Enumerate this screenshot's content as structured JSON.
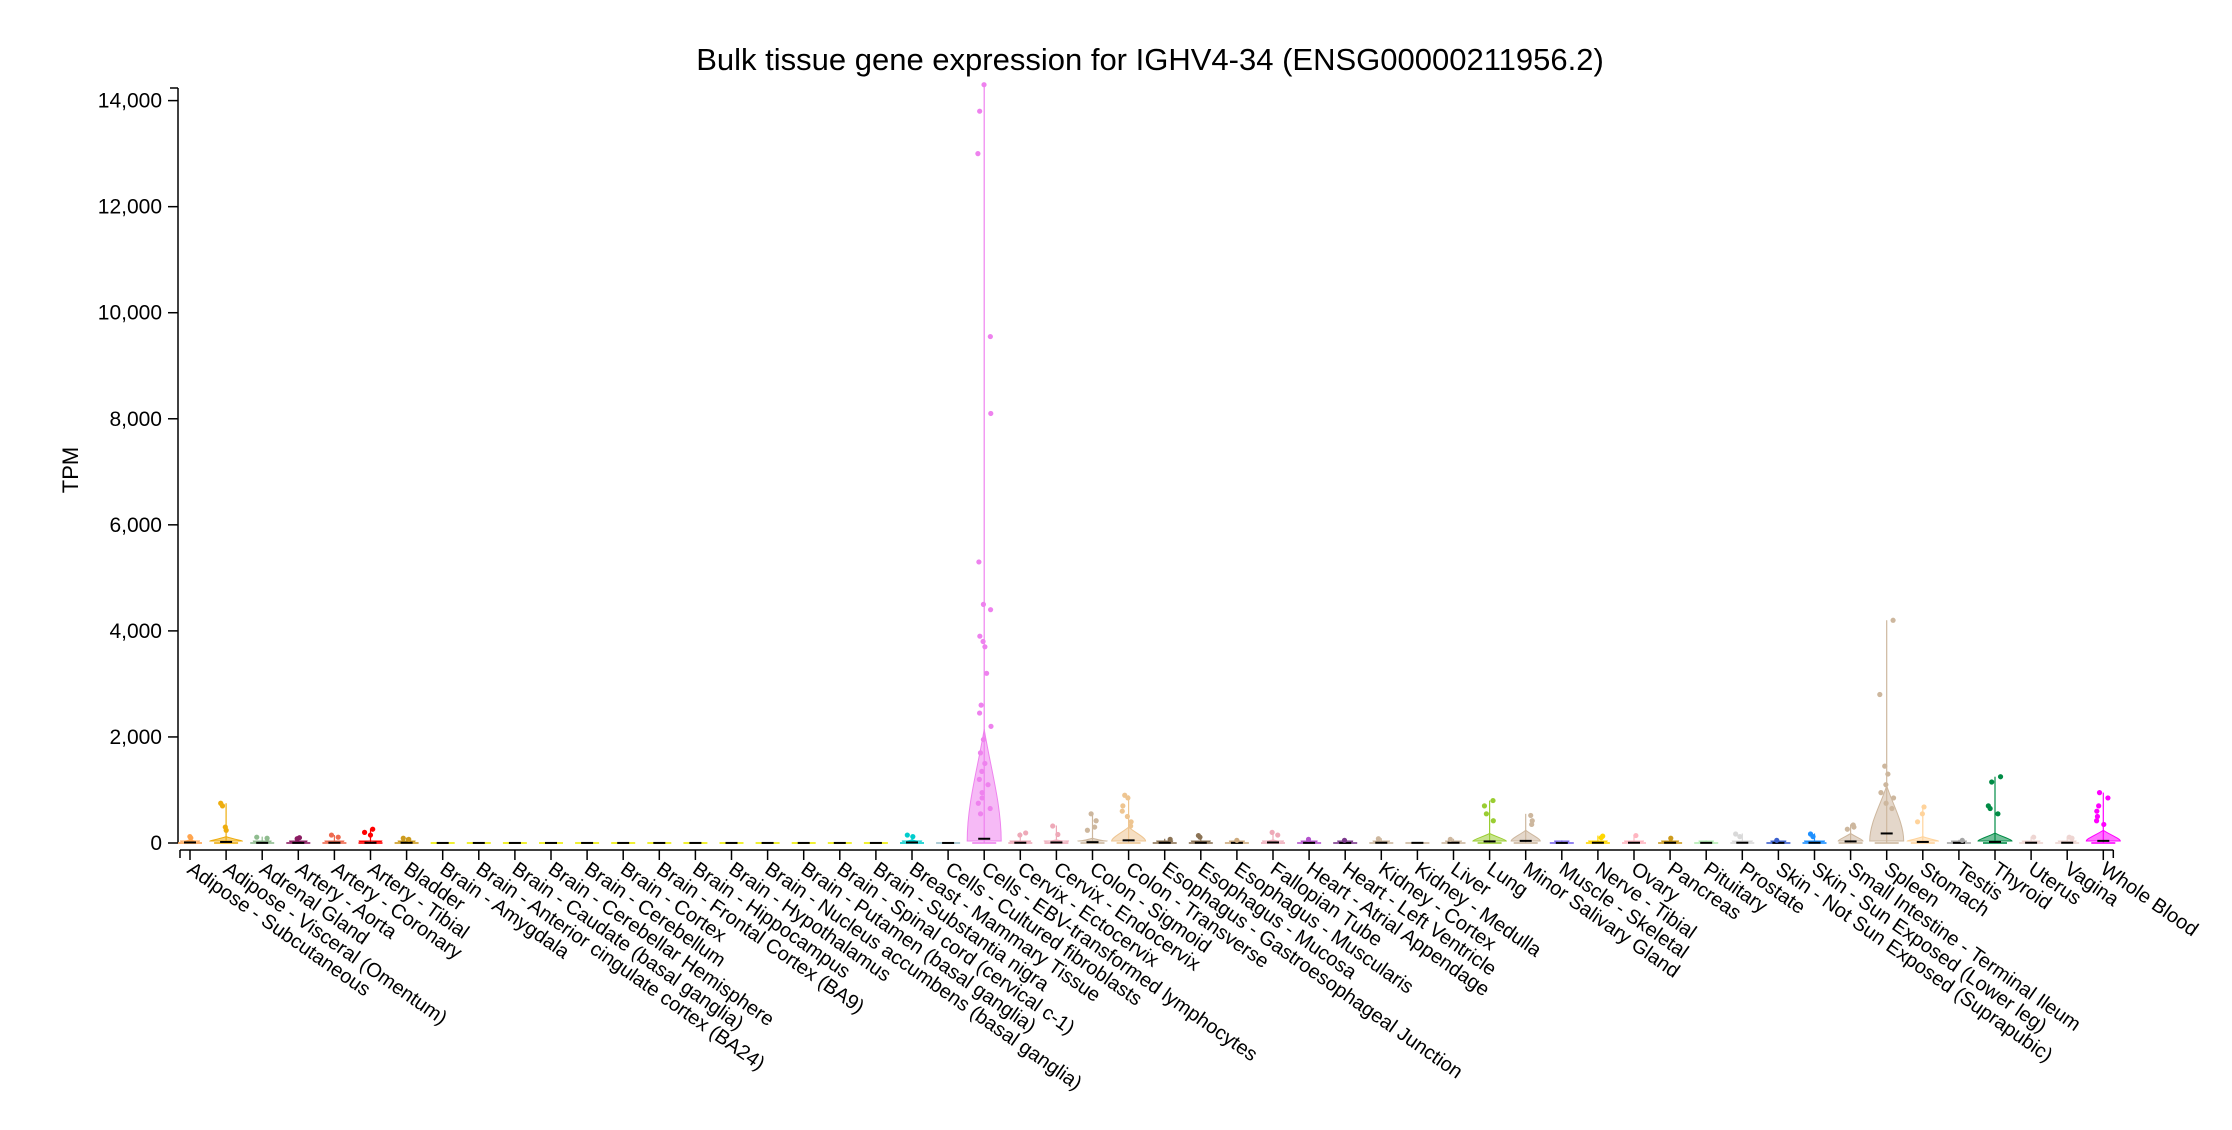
{
  "chart_data": {
    "type": "violin",
    "title": "Bulk tissue gene expression for IGHV4-34 (ENSG00000211956.2)",
    "xlabel": "",
    "ylabel": "TPM",
    "ylim": [
      0,
      14200
    ],
    "yticks": [
      0,
      2000,
      4000,
      6000,
      8000,
      10000,
      12000,
      14000
    ],
    "ytick_labels": [
      "0",
      "2,000",
      "4,000",
      "6,000",
      "8,000",
      "10,000",
      "12,000",
      "14,000"
    ],
    "grid": false,
    "legend": "none",
    "categories": [
      {
        "name": "Adipose - Subcutaneous",
        "color": "#FFA54F",
        "max": 150,
        "median": 10,
        "outliers": [
          120,
          95
        ]
      },
      {
        "name": "Adipose - Visceral (Omentum)",
        "color": "#EEAD0E",
        "max": 750,
        "median": 20,
        "outliers": [
          750,
          700,
          300,
          240
        ]
      },
      {
        "name": "Adrenal Gland",
        "color": "#8FBC8F",
        "max": 120,
        "median": 3,
        "outliers": [
          110,
          90
        ]
      },
      {
        "name": "Artery - Aorta",
        "color": "#8B1C62",
        "max": 110,
        "median": 3,
        "outliers": [
          100,
          80
        ]
      },
      {
        "name": "Artery - Coronary",
        "color": "#EE6A50",
        "max": 150,
        "median": 5,
        "outliers": [
          150,
          110
        ]
      },
      {
        "name": "Artery - Tibial",
        "color": "#FF0000",
        "max": 270,
        "median": 5,
        "outliers": [
          260,
          200,
          150
        ]
      },
      {
        "name": "Bladder",
        "color": "#CD9B1D",
        "max": 100,
        "median": 5,
        "outliers": [
          90,
          70
        ]
      },
      {
        "name": "Brain - Amygdala",
        "color": "#EEEE00",
        "max": 10,
        "median": 1,
        "outliers": []
      },
      {
        "name": "Brain - Anterior cingulate cortex (BA24)",
        "color": "#EEEE00",
        "max": 10,
        "median": 1,
        "outliers": []
      },
      {
        "name": "Brain - Caudate (basal ganglia)",
        "color": "#EEEE00",
        "max": 10,
        "median": 1,
        "outliers": []
      },
      {
        "name": "Brain - Cerebellar Hemisphere",
        "color": "#EEEE00",
        "max": 10,
        "median": 1,
        "outliers": []
      },
      {
        "name": "Brain - Cerebellum",
        "color": "#EEEE00",
        "max": 10,
        "median": 1,
        "outliers": []
      },
      {
        "name": "Brain - Cortex",
        "color": "#EEEE00",
        "max": 10,
        "median": 1,
        "outliers": []
      },
      {
        "name": "Brain - Frontal Cortex (BA9)",
        "color": "#EEEE00",
        "max": 10,
        "median": 1,
        "outliers": []
      },
      {
        "name": "Brain - Hippocampus",
        "color": "#EEEE00",
        "max": 10,
        "median": 1,
        "outliers": []
      },
      {
        "name": "Brain - Hypothalamus",
        "color": "#EEEE00",
        "max": 10,
        "median": 1,
        "outliers": []
      },
      {
        "name": "Brain - Nucleus accumbens (basal ganglia)",
        "color": "#EEEE00",
        "max": 10,
        "median": 1,
        "outliers": []
      },
      {
        "name": "Brain - Putamen (basal ganglia)",
        "color": "#EEEE00",
        "max": 10,
        "median": 1,
        "outliers": []
      },
      {
        "name": "Brain - Spinal cord (cervical c-1)",
        "color": "#EEEE00",
        "max": 10,
        "median": 1,
        "outliers": []
      },
      {
        "name": "Brain - Substantia nigra",
        "color": "#EEEE00",
        "max": 10,
        "median": 1,
        "outliers": []
      },
      {
        "name": "Breast - Mammary Tissue",
        "color": "#00CDCD",
        "max": 160,
        "median": 10,
        "outliers": [
          150,
          120
        ]
      },
      {
        "name": "Cells - Cultured fibroblasts",
        "color": "#9AC0CD",
        "max": 20,
        "median": 1,
        "outliers": []
      },
      {
        "name": "Cells - EBV-transformed lymphocytes",
        "color": "#EE82EE",
        "max": 14300,
        "median": 80,
        "outliers": [
          14300,
          13800,
          13000,
          9550,
          8100,
          5300,
          4500,
          4400,
          3900,
          3800,
          3700,
          3200,
          2600,
          2450,
          2200,
          1950,
          1700,
          1500,
          1350,
          1200,
          1100,
          950,
          850,
          750,
          650,
          550
        ]
      },
      {
        "name": "Cervix - Ectocervix",
        "color": "#EEA9B8",
        "max": 200,
        "median": 5,
        "outliers": [
          190,
          150
        ]
      },
      {
        "name": "Cervix - Endocervix",
        "color": "#EEA9B8",
        "max": 330,
        "median": 10,
        "outliers": [
          320,
          160
        ]
      },
      {
        "name": "Colon - Sigmoid",
        "color": "#CDB79E",
        "max": 550,
        "median": 15,
        "outliers": [
          550,
          420,
          300,
          240
        ]
      },
      {
        "name": "Colon - Transverse",
        "color": "#EEC591",
        "max": 900,
        "median": 50,
        "outliers": [
          900,
          850,
          700,
          600,
          500,
          400,
          320
        ]
      },
      {
        "name": "Esophagus - Gastroesophageal Junction",
        "color": "#8B7355",
        "max": 80,
        "median": 5,
        "outliers": [
          70
        ]
      },
      {
        "name": "Esophagus - Mucosa",
        "color": "#8B7355",
        "max": 150,
        "median": 5,
        "outliers": [
          140,
          110
        ]
      },
      {
        "name": "Esophagus - Muscularis",
        "color": "#CDAA7D",
        "max": 60,
        "median": 3,
        "outliers": [
          50
        ]
      },
      {
        "name": "Fallopian Tube",
        "color": "#EEA9B8",
        "max": 210,
        "median": 10,
        "outliers": [
          200,
          150
        ]
      },
      {
        "name": "Heart - Atrial Appendage",
        "color": "#B452CD",
        "max": 80,
        "median": 3,
        "outliers": [
          70
        ]
      },
      {
        "name": "Heart - Left Ventricle",
        "color": "#7A378B",
        "max": 60,
        "median": 2,
        "outliers": [
          50
        ]
      },
      {
        "name": "Kidney - Cortex",
        "color": "#CDB79E",
        "max": 90,
        "median": 5,
        "outliers": [
          80
        ]
      },
      {
        "name": "Kidney - Medulla",
        "color": "#CDB79E",
        "max": 30,
        "median": 3,
        "outliers": []
      },
      {
        "name": "Liver",
        "color": "#CDB79E",
        "max": 80,
        "median": 5,
        "outliers": [
          70
        ]
      },
      {
        "name": "Lung",
        "color": "#9ACD32",
        "max": 800,
        "median": 30,
        "outliers": [
          800,
          700,
          550,
          420
        ]
      },
      {
        "name": "Minor Salivary Gland",
        "color": "#CDB79E",
        "max": 550,
        "median": 40,
        "outliers": [
          520,
          420,
          350
        ]
      },
      {
        "name": "Muscle - Skeletal",
        "color": "#7A67EE",
        "max": 50,
        "median": 2,
        "outliers": []
      },
      {
        "name": "Nerve - Tibial",
        "color": "#FFD700",
        "max": 140,
        "median": 5,
        "outliers": [
          130,
          100
        ]
      },
      {
        "name": "Ovary",
        "color": "#FFB6C1",
        "max": 150,
        "median": 5,
        "outliers": [
          140
        ]
      },
      {
        "name": "Pancreas",
        "color": "#CD9B1D",
        "max": 100,
        "median": 5,
        "outliers": [
          90
        ]
      },
      {
        "name": "Pituitary",
        "color": "#B4EEB4",
        "max": 50,
        "median": 3,
        "outliers": []
      },
      {
        "name": "Prostate",
        "color": "#D9D9D9",
        "max": 180,
        "median": 5,
        "outliers": [
          170,
          120
        ]
      },
      {
        "name": "Skin - Not Sun Exposed (Suprapubic)",
        "color": "#3A5FCD",
        "max": 60,
        "median": 3,
        "outliers": [
          50
        ]
      },
      {
        "name": "Skin - Sun Exposed (Lower leg)",
        "color": "#1E90FF",
        "max": 180,
        "median": 5,
        "outliers": [
          170,
          120
        ]
      },
      {
        "name": "Small Intestine - Terminal Ileum",
        "color": "#CDB79E",
        "max": 350,
        "median": 30,
        "outliers": [
          340,
          300,
          260
        ]
      },
      {
        "name": "Spleen",
        "color": "#CDB79E",
        "max": 4200,
        "median": 180,
        "outliers": [
          4200,
          2800,
          1450,
          1300,
          1100,
          950,
          850,
          750,
          650
        ]
      },
      {
        "name": "Stomach",
        "color": "#FFD39B",
        "max": 680,
        "median": 20,
        "outliers": [
          680,
          550,
          400
        ]
      },
      {
        "name": "Testis",
        "color": "#A6A6A6",
        "max": 60,
        "median": 3,
        "outliers": [
          50
        ]
      },
      {
        "name": "Thyroid",
        "color": "#008B45",
        "max": 1250,
        "median": 20,
        "outliers": [
          1250,
          1150,
          700,
          650,
          550
        ]
      },
      {
        "name": "Uterus",
        "color": "#EED5D2",
        "max": 120,
        "median": 5,
        "outliers": [
          110
        ]
      },
      {
        "name": "Vagina",
        "color": "#EED5D2",
        "max": 120,
        "median": 5,
        "outliers": [
          110,
          90
        ]
      },
      {
        "name": "Whole Blood",
        "color": "#FF00FF",
        "max": 950,
        "median": 40,
        "outliers": [
          950,
          850,
          700,
          600,
          500,
          420,
          350
        ]
      }
    ]
  }
}
